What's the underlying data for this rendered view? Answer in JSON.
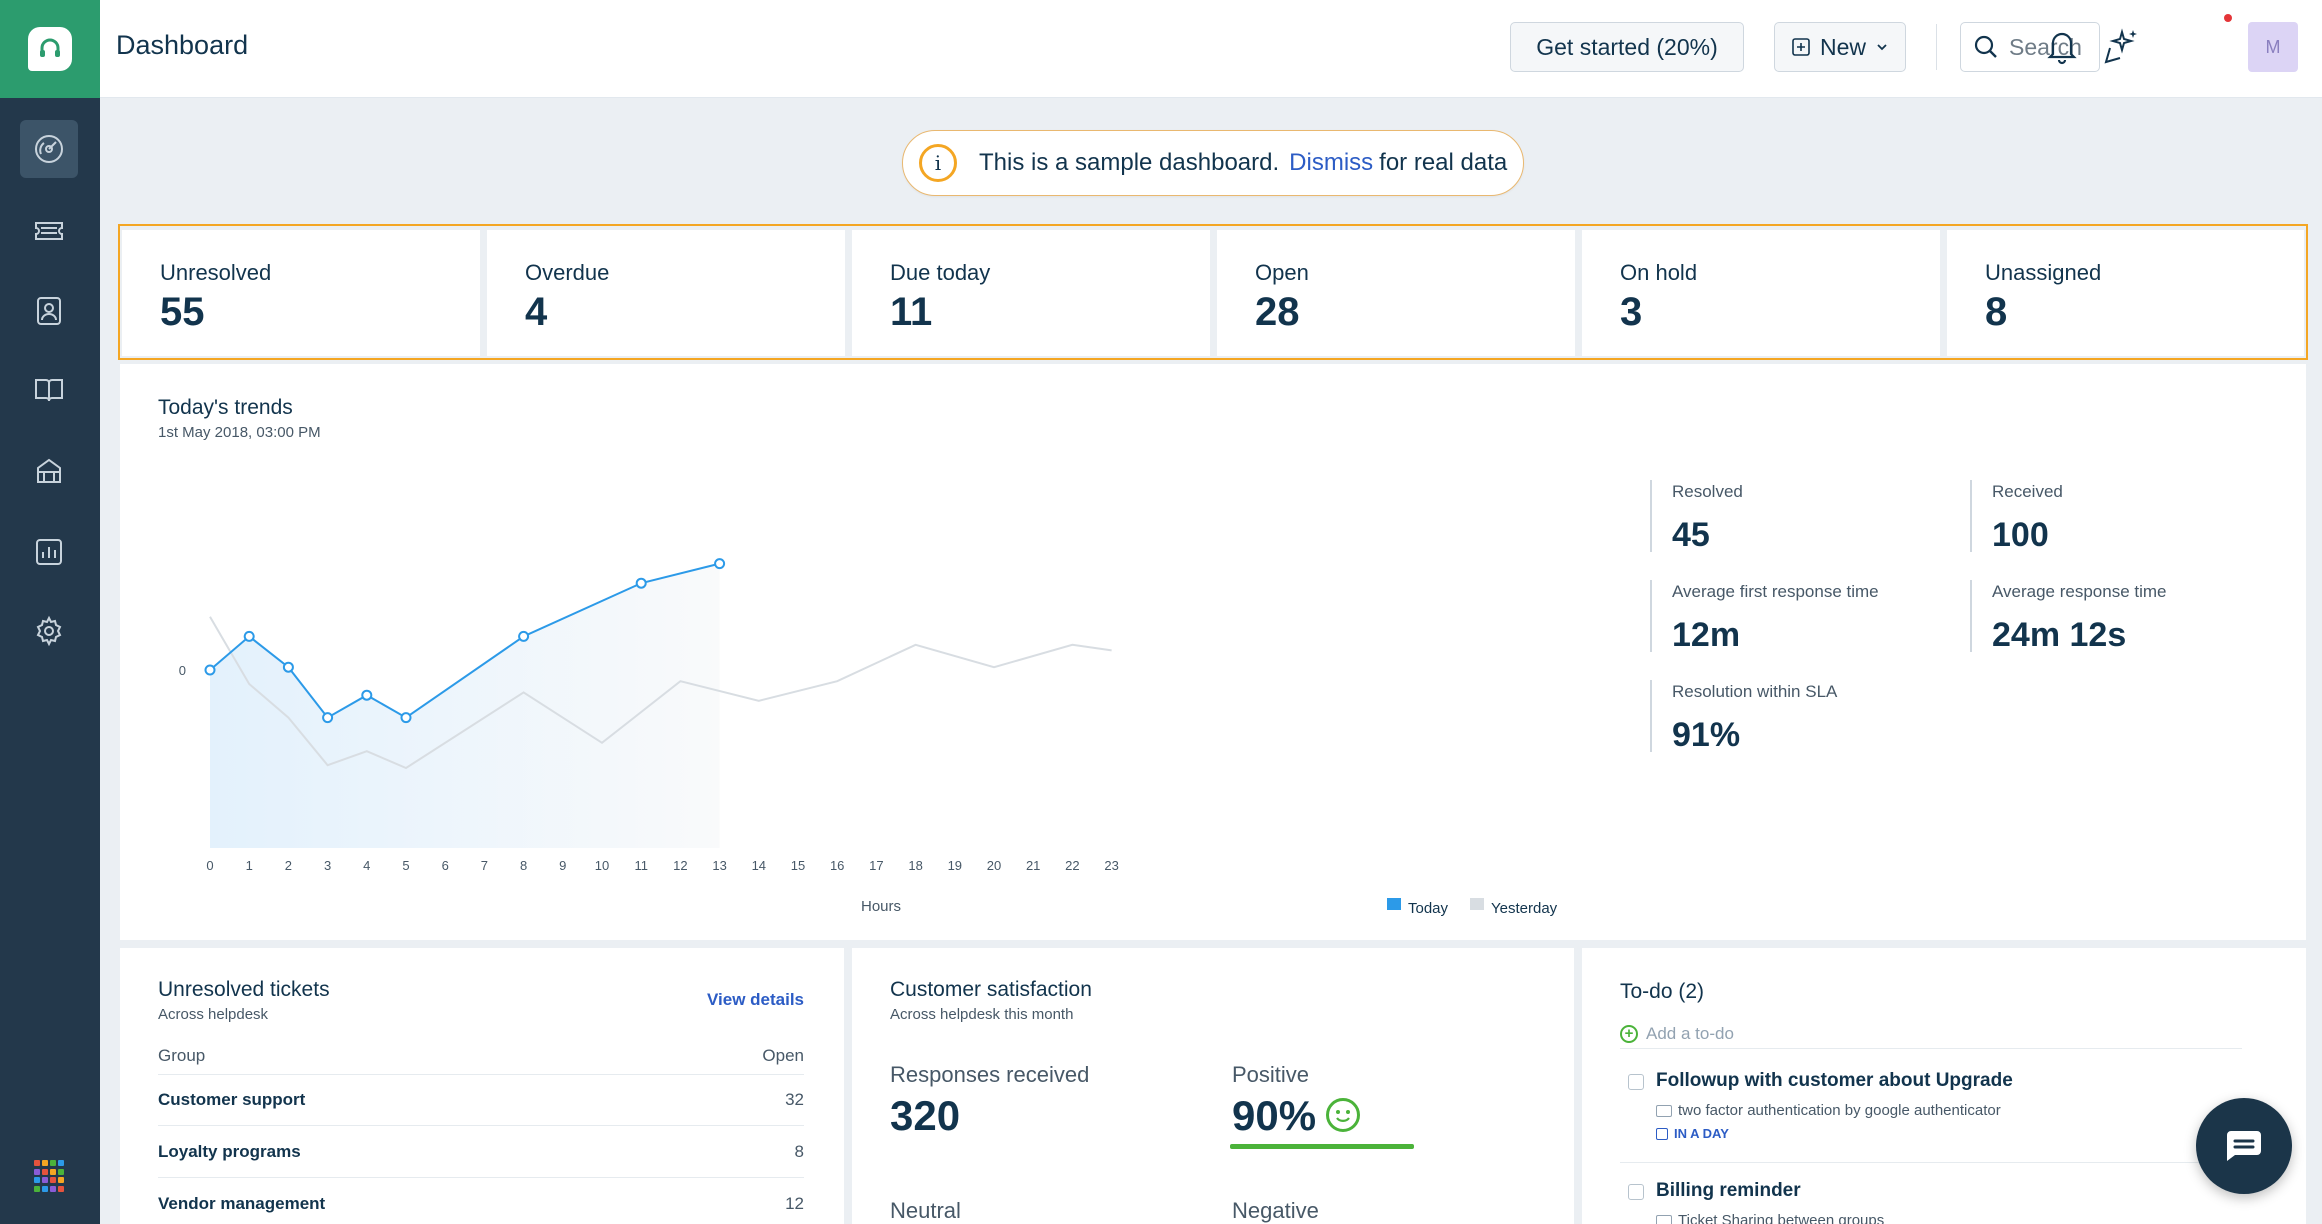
{
  "header": {
    "title": "Dashboard",
    "get_started": "Get started (20%)",
    "new_label": "New",
    "search_placeholder": "Search",
    "avatar_initial": "M"
  },
  "banner": {
    "text": "This is a sample dashboard.",
    "link": "Dismiss",
    "suffix": "for real data",
    "info_glyph": "i"
  },
  "stats": [
    {
      "label": "Unresolved",
      "value": "55"
    },
    {
      "label": "Overdue",
      "value": "4"
    },
    {
      "label": "Due today",
      "value": "11"
    },
    {
      "label": "Open",
      "value": "28"
    },
    {
      "label": "On hold",
      "value": "3"
    },
    {
      "label": "Unassigned",
      "value": "8"
    }
  ],
  "trends": {
    "title": "Today's trends",
    "subtitle": "1st May 2018, 03:00 PM",
    "metrics": [
      {
        "label": "Resolved",
        "value": "45"
      },
      {
        "label": "Received",
        "value": "100"
      },
      {
        "label": "Average first response time",
        "value": "12m"
      },
      {
        "label": "Average response time",
        "value": "24m 12s"
      },
      {
        "label": "Resolution within SLA",
        "value": "91%"
      }
    ]
  },
  "chart_data": {
    "type": "line",
    "xlabel": "Hours",
    "ylabel": "",
    "y_tick_labels": [
      "0"
    ],
    "x": [
      0,
      1,
      2,
      3,
      4,
      5,
      6,
      7,
      8,
      9,
      10,
      11,
      12,
      13,
      14,
      15,
      16,
      17,
      18,
      19,
      20,
      21,
      22,
      23
    ],
    "series": [
      {
        "name": "Today",
        "color": "#2c9ae8",
        "x": [
          0,
          1,
          2,
          3,
          4,
          5,
          8,
          11,
          13
        ],
        "values": [
          0,
          0.6,
          0.05,
          -0.85,
          -0.45,
          -0.85,
          0.6,
          1.55,
          1.9
        ]
      },
      {
        "name": "Yesterday",
        "color": "#d8dde2",
        "x": [
          0,
          1,
          2,
          3,
          4,
          5,
          8,
          10,
          12,
          14,
          16,
          18,
          20,
          22,
          23
        ],
        "values": [
          0.95,
          -0.25,
          -0.85,
          -1.7,
          -1.45,
          -1.75,
          -0.4,
          -1.3,
          -0.2,
          -0.55,
          -0.2,
          0.45,
          0.05,
          0.45,
          0.35
        ]
      }
    ],
    "legend_position": "bottom-right",
    "grid": false
  },
  "unresolved": {
    "title": "Unresolved tickets",
    "subtitle": "Across helpdesk",
    "view_details": "View details",
    "col_group": "Group",
    "col_open": "Open",
    "rows": [
      {
        "group": "Customer support",
        "open": "32"
      },
      {
        "group": "Loyalty programs",
        "open": "8"
      },
      {
        "group": "Vendor management",
        "open": "12"
      }
    ]
  },
  "csat": {
    "title": "Customer satisfaction",
    "subtitle": "Across helpdesk this month",
    "responses_label": "Responses received",
    "responses_value": "320",
    "positive_label": "Positive",
    "positive_value": "90%",
    "neutral_label": "Neutral",
    "negative_label": "Negative",
    "positive_color": "#4bb33a"
  },
  "todo": {
    "title": "To-do (2)",
    "add_placeholder": "Add a to-do",
    "items": [
      {
        "text": "Followup with customer about Upgrade",
        "meta": "two factor authentication by google authenticator",
        "due": "IN A DAY"
      },
      {
        "text": "Billing reminder",
        "meta": "Ticket Sharing between groups"
      }
    ]
  },
  "colors": {
    "brand_green": "#2c9c6e",
    "sidebar": "#23384b",
    "accent_orange": "#f4a623",
    "link_blue": "#2c5cc5"
  }
}
